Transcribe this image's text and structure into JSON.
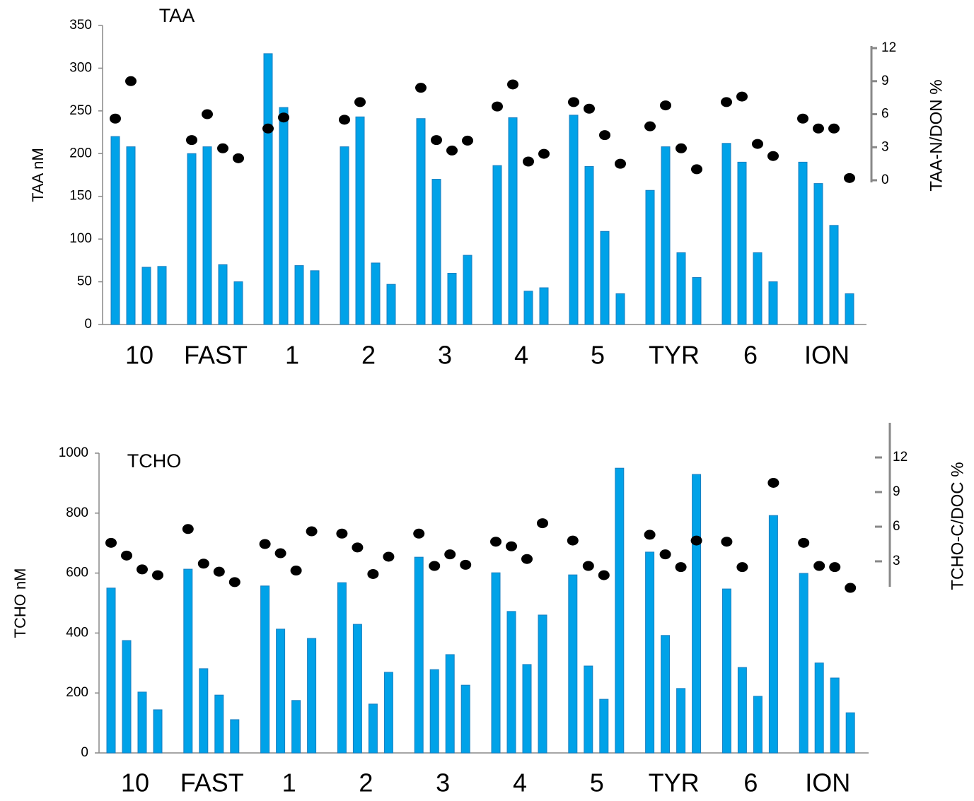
{
  "chart_data": [
    {
      "type": "bar",
      "title": "TAA",
      "y_label": "TAA nM",
      "y2_label": "TAA-N/DON %",
      "categories": [
        "10",
        "FAST",
        "1",
        "2",
        "3",
        "4",
        "5",
        "TYR",
        "6",
        "ION"
      ],
      "ylim": [
        0,
        350
      ],
      "yticks": [
        0,
        50,
        100,
        150,
        200,
        250,
        300,
        350
      ],
      "y2lim": [
        -13.1,
        14.06
      ],
      "y2ticks": [
        0,
        3,
        6,
        9,
        12
      ],
      "series": [
        {
          "type": "bar",
          "color": "#00a2e8",
          "values": [
            220,
            200,
            317,
            208,
            241,
            186,
            245,
            157,
            212,
            190
          ]
        },
        {
          "type": "bar",
          "color": "#00a2e8",
          "values": [
            208,
            208,
            254,
            243,
            170,
            242,
            185,
            208,
            190,
            165
          ]
        },
        {
          "type": "bar",
          "color": "#00a2e8",
          "values": [
            67,
            70,
            69,
            72,
            60,
            39,
            109,
            84,
            84,
            116
          ]
        },
        {
          "type": "bar",
          "color": "#00a2e8",
          "values": [
            68,
            50,
            63,
            47,
            81,
            43,
            36,
            55,
            50,
            36
          ]
        },
        {
          "type": "scatter",
          "axis": "y2",
          "color": "#000000",
          "values": [
            5.6,
            3.65,
            4.7,
            5.5,
            8.4,
            6.7,
            7.1,
            4.9,
            7.1,
            5.6
          ]
        },
        {
          "type": "scatter",
          "axis": "y2",
          "color": "#000000",
          "values": [
            9.0,
            6.0,
            5.7,
            7.1,
            3.65,
            8.7,
            6.5,
            6.8,
            7.6,
            4.7
          ]
        },
        {
          "type": "scatter",
          "axis": "y2",
          "color": "#000000",
          "values": [
            null,
            2.9,
            null,
            null,
            2.7,
            1.7,
            4.1,
            2.9,
            3.3,
            4.7
          ]
        },
        {
          "type": "scatter",
          "axis": "y2",
          "color": "#000000",
          "values": [
            null,
            2.0,
            null,
            null,
            3.6,
            2.4,
            1.5,
            1.0,
            2.2,
            0.2
          ]
        }
      ]
    },
    {
      "type": "bar",
      "title": "TCHO",
      "y_label": "TCHO nM",
      "y2_label": "TCHO-C/DOC %",
      "categories": [
        "10",
        "FAST",
        "1",
        "2",
        "3",
        "4",
        "5",
        "TYR",
        "6",
        "ION"
      ],
      "ylim": [
        0,
        1000
      ],
      "yticks": [
        0,
        200,
        400,
        600,
        800,
        1000
      ],
      "y2lim": [
        -13.6,
        12.37
      ],
      "y2ticks": [
        3,
        6,
        9,
        12
      ],
      "series": [
        {
          "type": "bar",
          "color": "#00a2e8",
          "values": [
            550,
            613,
            557,
            568,
            653,
            601,
            594,
            670,
            547,
            599
          ]
        },
        {
          "type": "bar",
          "color": "#00a2e8",
          "values": [
            375,
            281,
            413,
            429,
            278,
            472,
            290,
            392,
            285,
            300
          ]
        },
        {
          "type": "bar",
          "color": "#00a2e8",
          "values": [
            203,
            193,
            175,
            163,
            328,
            295,
            179,
            215,
            189,
            250
          ]
        },
        {
          "type": "bar",
          "color": "#00a2e8",
          "values": [
            144,
            111,
            382,
            269,
            226,
            460,
            950,
            929,
            792,
            134
          ]
        },
        {
          "type": "scatter",
          "axis": "y2",
          "color": "#000000",
          "values": [
            4.6,
            5.8,
            4.5,
            5.4,
            5.4,
            4.7,
            4.8,
            5.3,
            4.7,
            4.6
          ]
        },
        {
          "type": "scatter",
          "axis": "y2",
          "color": "#000000",
          "values": [
            3.5,
            2.8,
            3.7,
            4.2,
            2.6,
            4.3,
            2.6,
            3.6,
            2.5,
            2.6
          ]
        },
        {
          "type": "scatter",
          "axis": "y2",
          "color": "#000000",
          "values": [
            2.3,
            2.1,
            2.2,
            1.9,
            3.6,
            3.2,
            1.8,
            2.5,
            null,
            2.5
          ]
        },
        {
          "type": "scatter",
          "axis": "y2",
          "color": "#000000",
          "values": [
            1.8,
            1.2,
            5.6,
            3.4,
            2.7,
            6.3,
            null,
            4.8,
            9.8,
            0.7
          ]
        }
      ]
    }
  ]
}
